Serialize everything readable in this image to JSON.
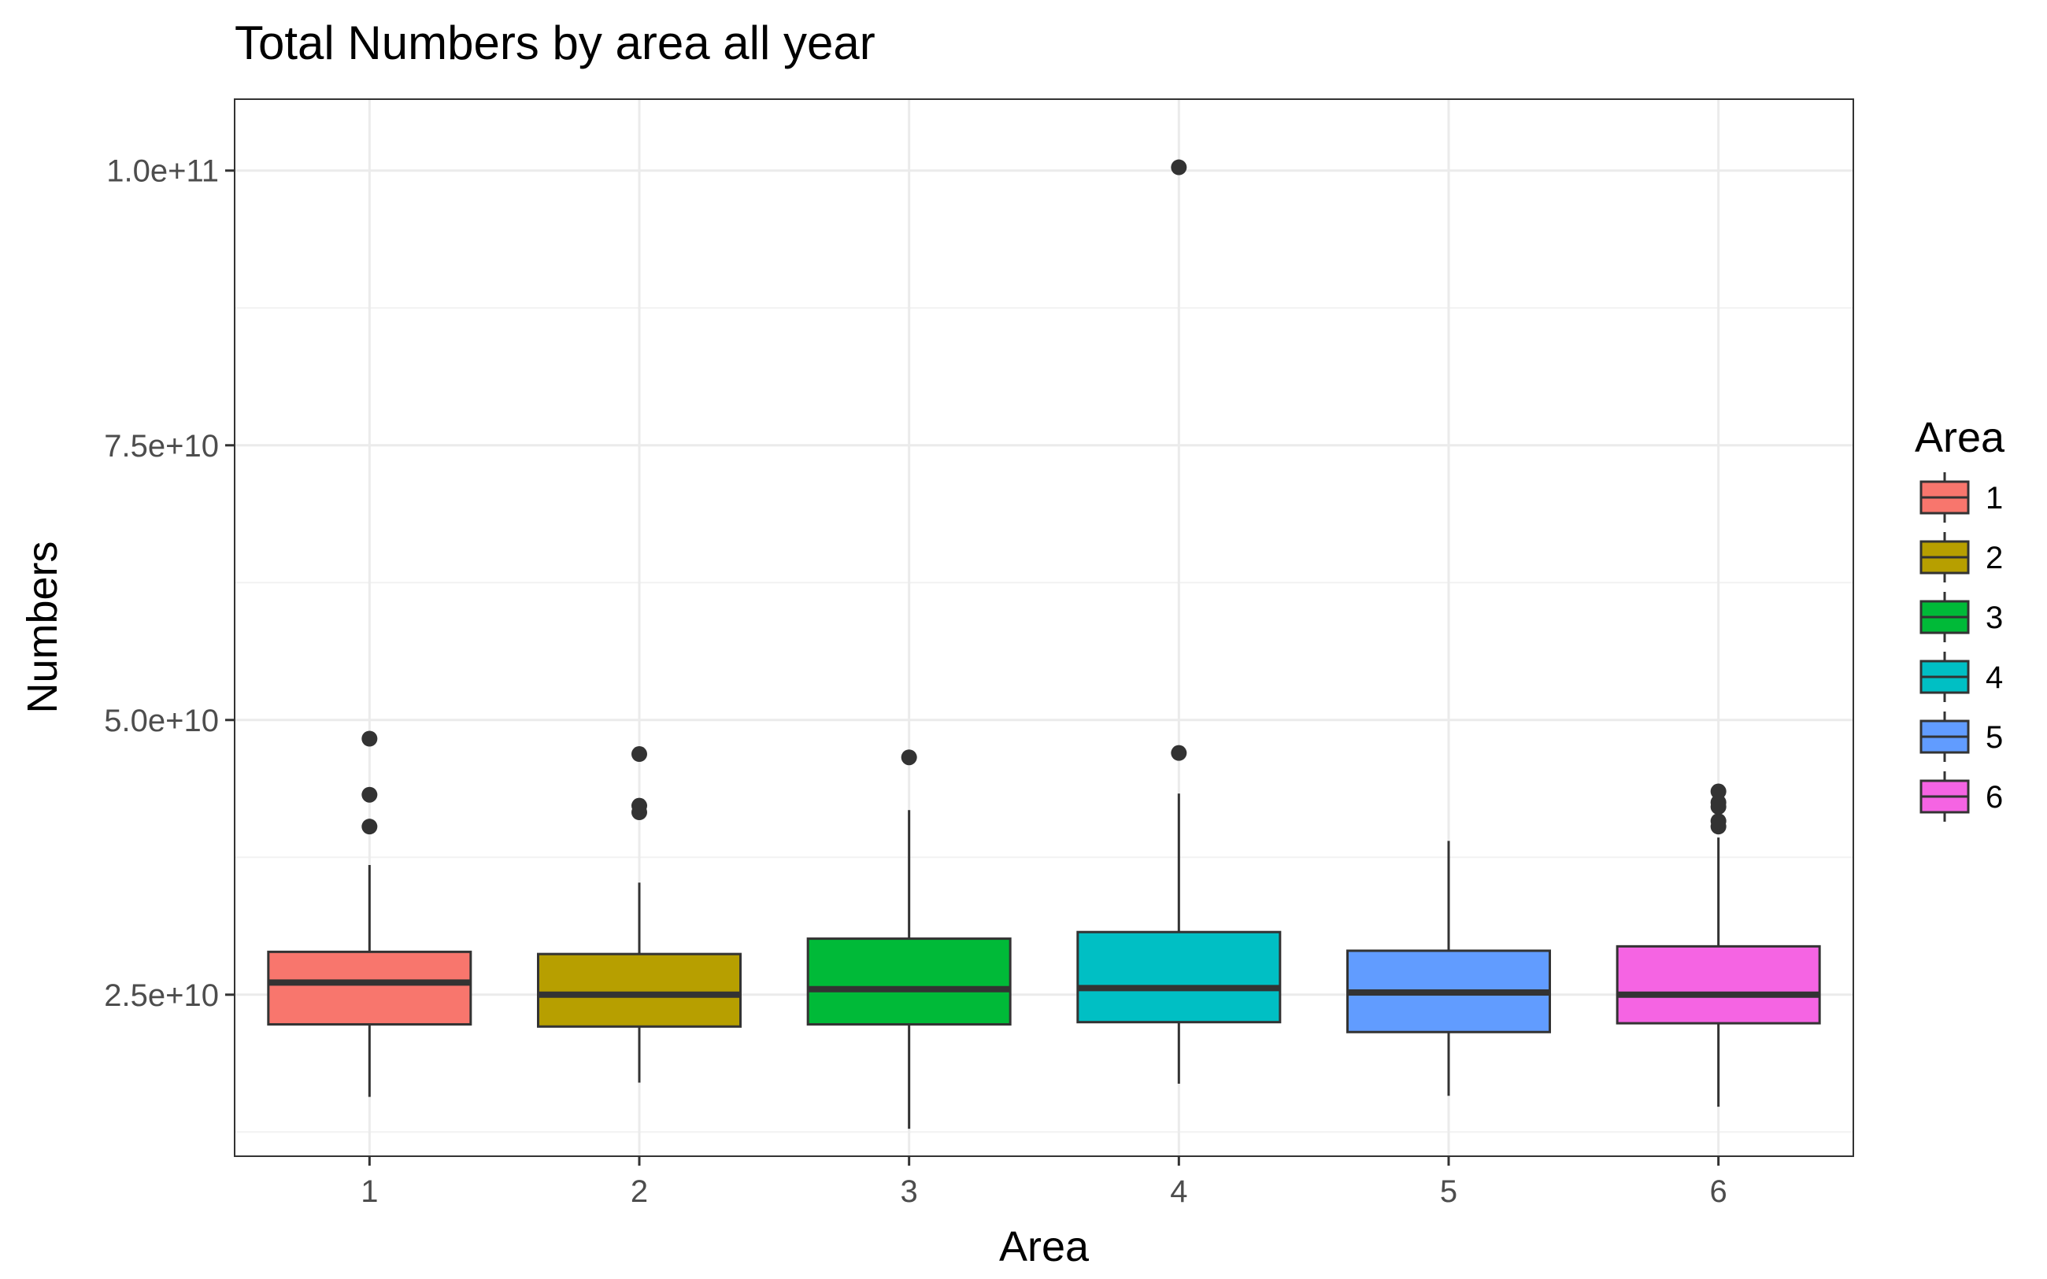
{
  "chart_data": {
    "type": "boxplot",
    "title": "Total Numbers by area all year",
    "xlabel": "Area",
    "ylabel": "Numbers",
    "categories": [
      "1",
      "2",
      "3",
      "4",
      "5",
      "6"
    ],
    "ylim": [
      10300000000,
      106500000000
    ],
    "y_ticks": [
      25000000000,
      50000000000,
      75000000000,
      100000000000
    ],
    "y_tick_labels": [
      "2.5e+10",
      "5.0e+10",
      "7.5e+10",
      "1.0e+11"
    ],
    "grid": true,
    "legend": {
      "title": "Area",
      "placement": "right",
      "entries": [
        "1",
        "2",
        "3",
        "4",
        "5",
        "6"
      ]
    },
    "colors": [
      "#F8766D",
      "#B79F00",
      "#00BA38",
      "#00BFC4",
      "#619CFF",
      "#F564E3"
    ],
    "series": [
      {
        "name": "1",
        "whisker_low": 15700000000,
        "q1": 22300000000,
        "median": 26100000000,
        "q3": 28900000000,
        "whisker_high": 36800000000,
        "outliers": [
          40300000000,
          43200000000,
          48300000000
        ]
      },
      {
        "name": "2",
        "whisker_low": 17000000000,
        "q1": 22100000000,
        "median": 25000000000,
        "q3": 28700000000,
        "whisker_high": 35200000000,
        "outliers": [
          41600000000,
          42200000000,
          46900000000
        ]
      },
      {
        "name": "3",
        "whisker_low": 12800000000,
        "q1": 22300000000,
        "median": 25500000000,
        "q3": 30100000000,
        "whisker_high": 41800000000,
        "outliers": [
          46600000000
        ]
      },
      {
        "name": "4",
        "whisker_low": 16900000000,
        "q1": 22500000000,
        "median": 25600000000,
        "q3": 30700000000,
        "whisker_high": 43300000000,
        "outliers": [
          47000000000,
          100300000000
        ]
      },
      {
        "name": "5",
        "whisker_low": 15800000000,
        "q1": 21600000000,
        "median": 25200000000,
        "q3": 29000000000,
        "whisker_high": 39000000000,
        "outliers": []
      },
      {
        "name": "6",
        "whisker_low": 14800000000,
        "q1": 22400000000,
        "median": 25000000000,
        "q3": 29400000000,
        "whisker_high": 39300000000,
        "outliers": [
          40300000000,
          40800000000,
          42100000000,
          42500000000,
          43500000000
        ]
      }
    ]
  }
}
